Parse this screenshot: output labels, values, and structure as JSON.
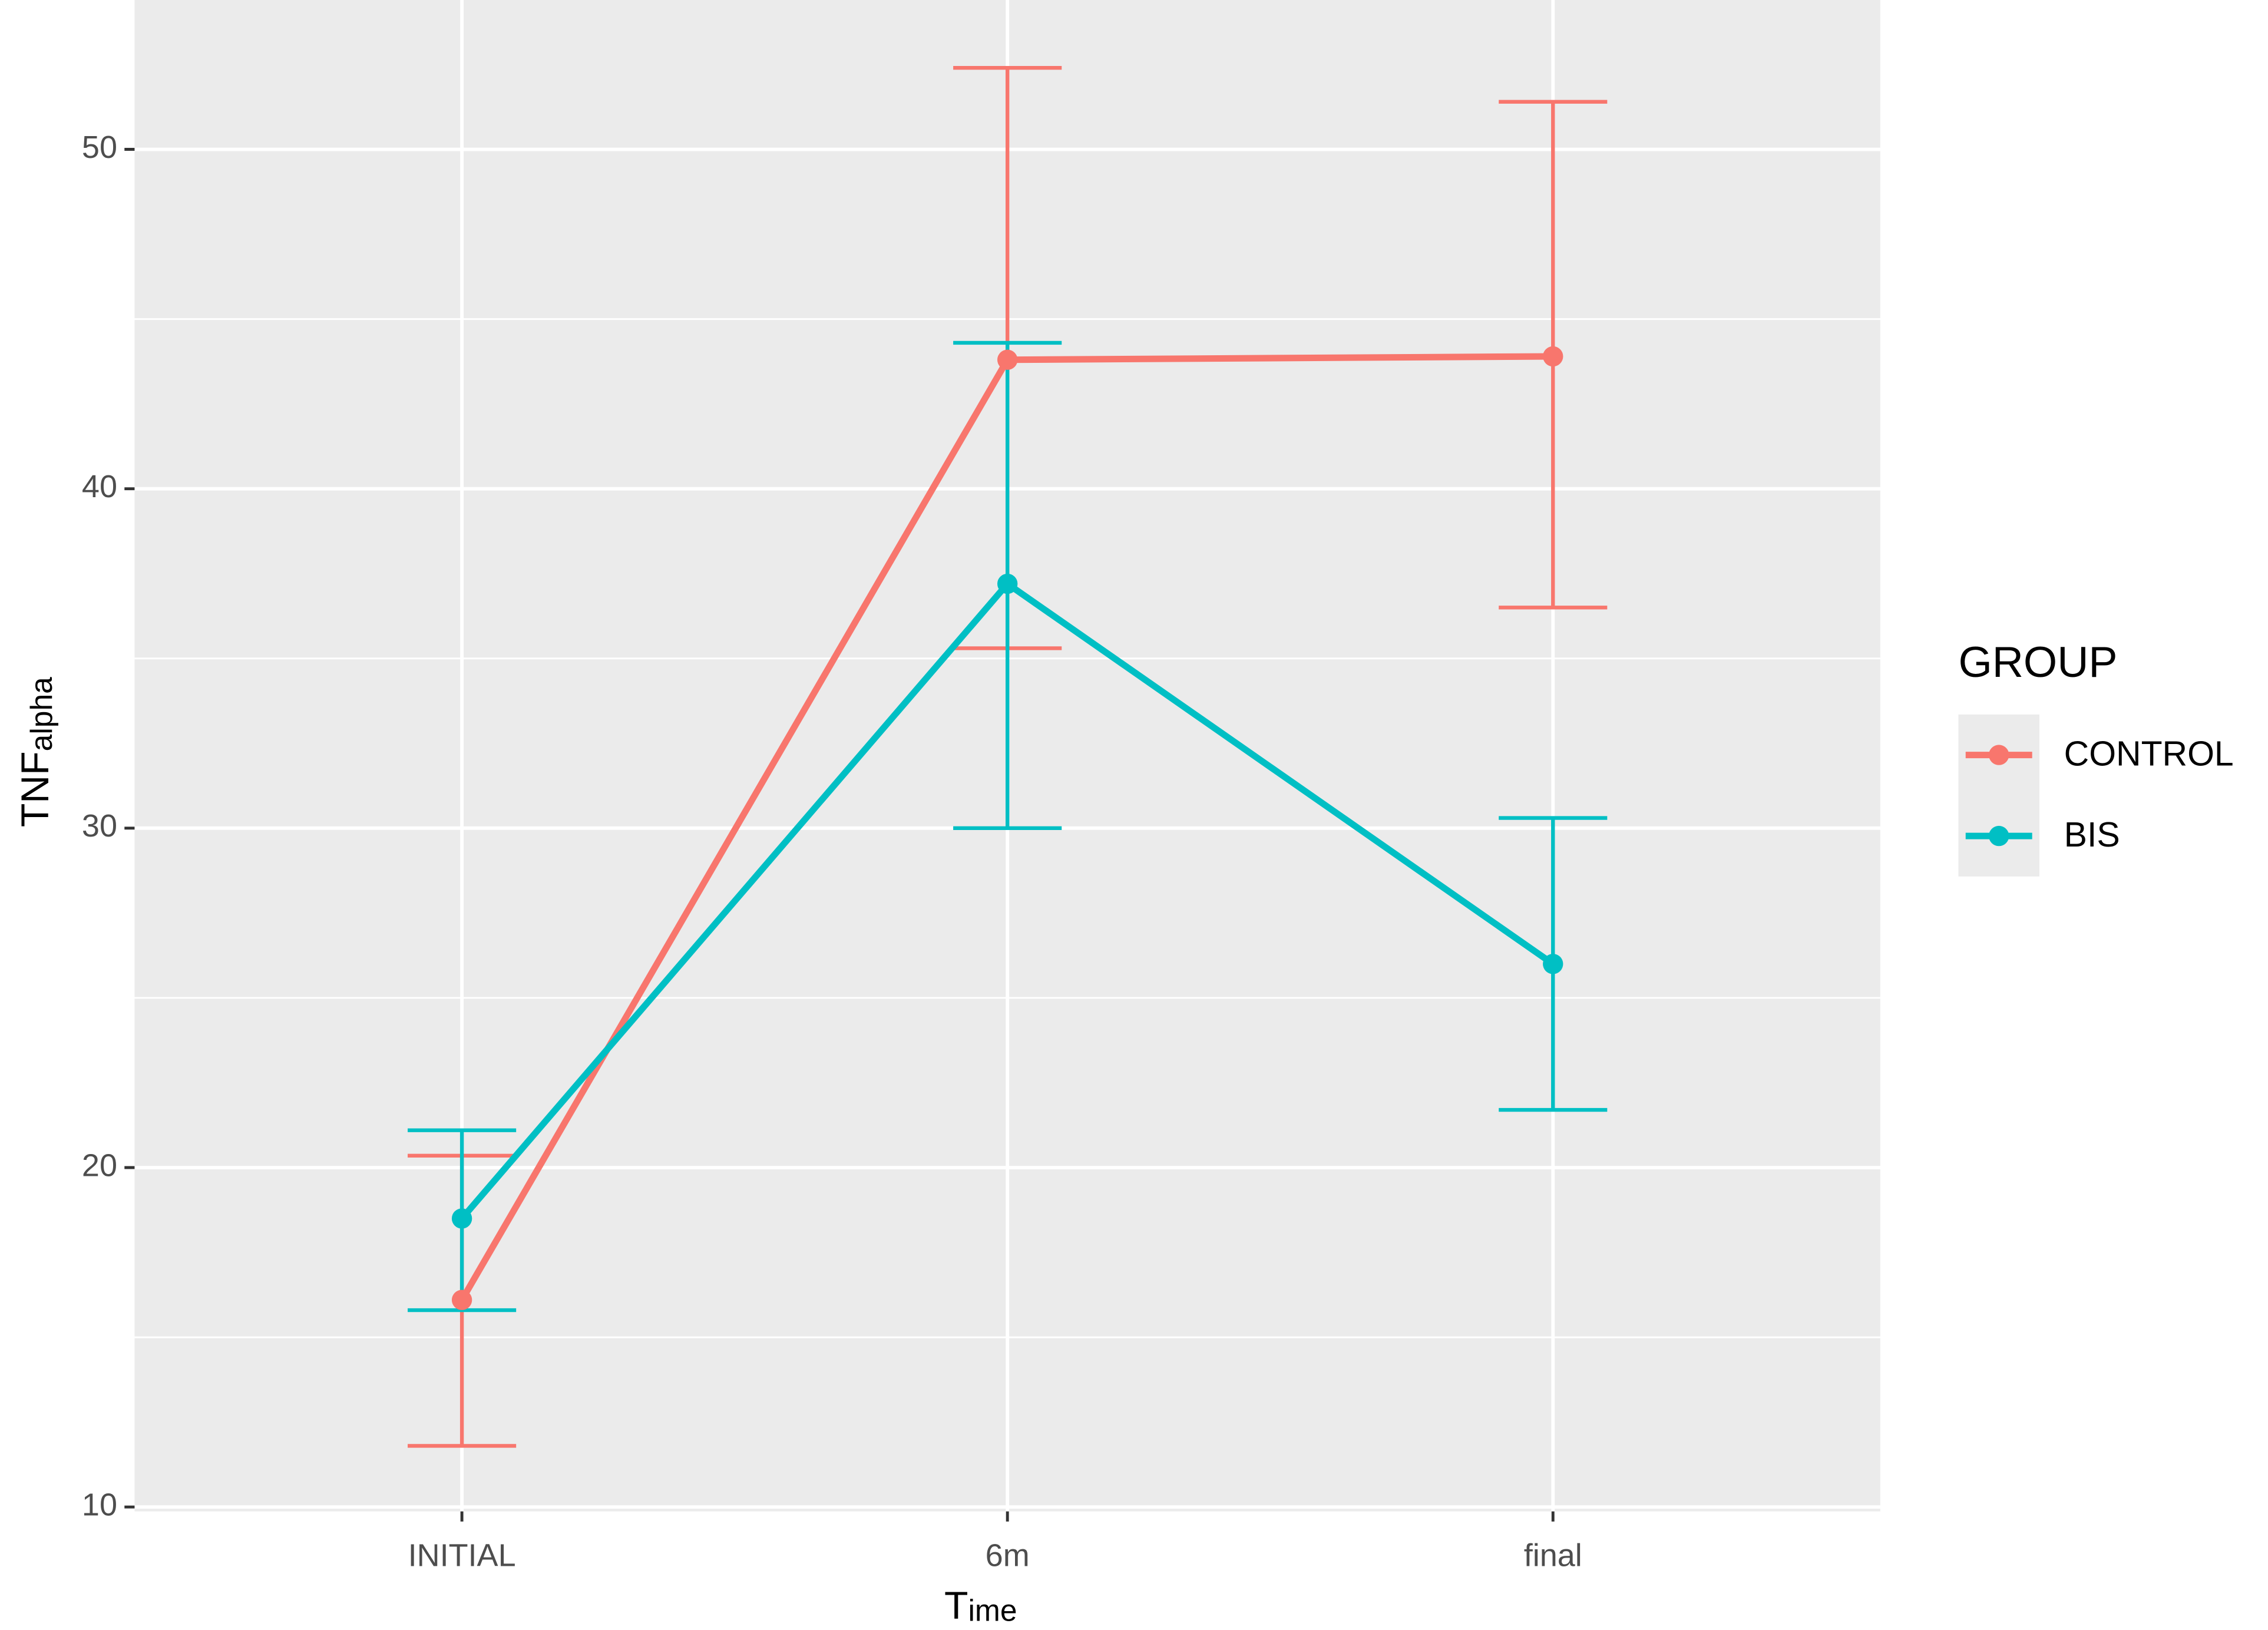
{
  "chart_data": {
    "type": "line",
    "xlabel": "T",
    "xlabel_subscript": "ime",
    "ylabel": "TNF",
    "ylabel_subscript": "alpha",
    "categories": [
      "INITIAL",
      "6m",
      "final"
    ],
    "series": [
      {
        "name": "CONTROL",
        "color": "#F8766D",
        "values": [
          16.1,
          43.8,
          43.9
        ],
        "lower": [
          11.8,
          35.3,
          36.5
        ],
        "upper": [
          20.35,
          52.4,
          51.4
        ]
      },
      {
        "name": "BIS",
        "color": "#00BFC4",
        "values": [
          18.5,
          37.2,
          26.0
        ],
        "lower": [
          15.8,
          30.0,
          21.7
        ],
        "upper": [
          21.1,
          44.3,
          30.3
        ]
      }
    ],
    "ylim": [
      9.87,
      54.4
    ],
    "yticks": [
      10,
      20,
      30,
      40,
      50
    ],
    "y_minor_grid": [
      15,
      25,
      35,
      45
    ],
    "grid": true,
    "legend_title": "GROUP",
    "legend_position": "right"
  }
}
